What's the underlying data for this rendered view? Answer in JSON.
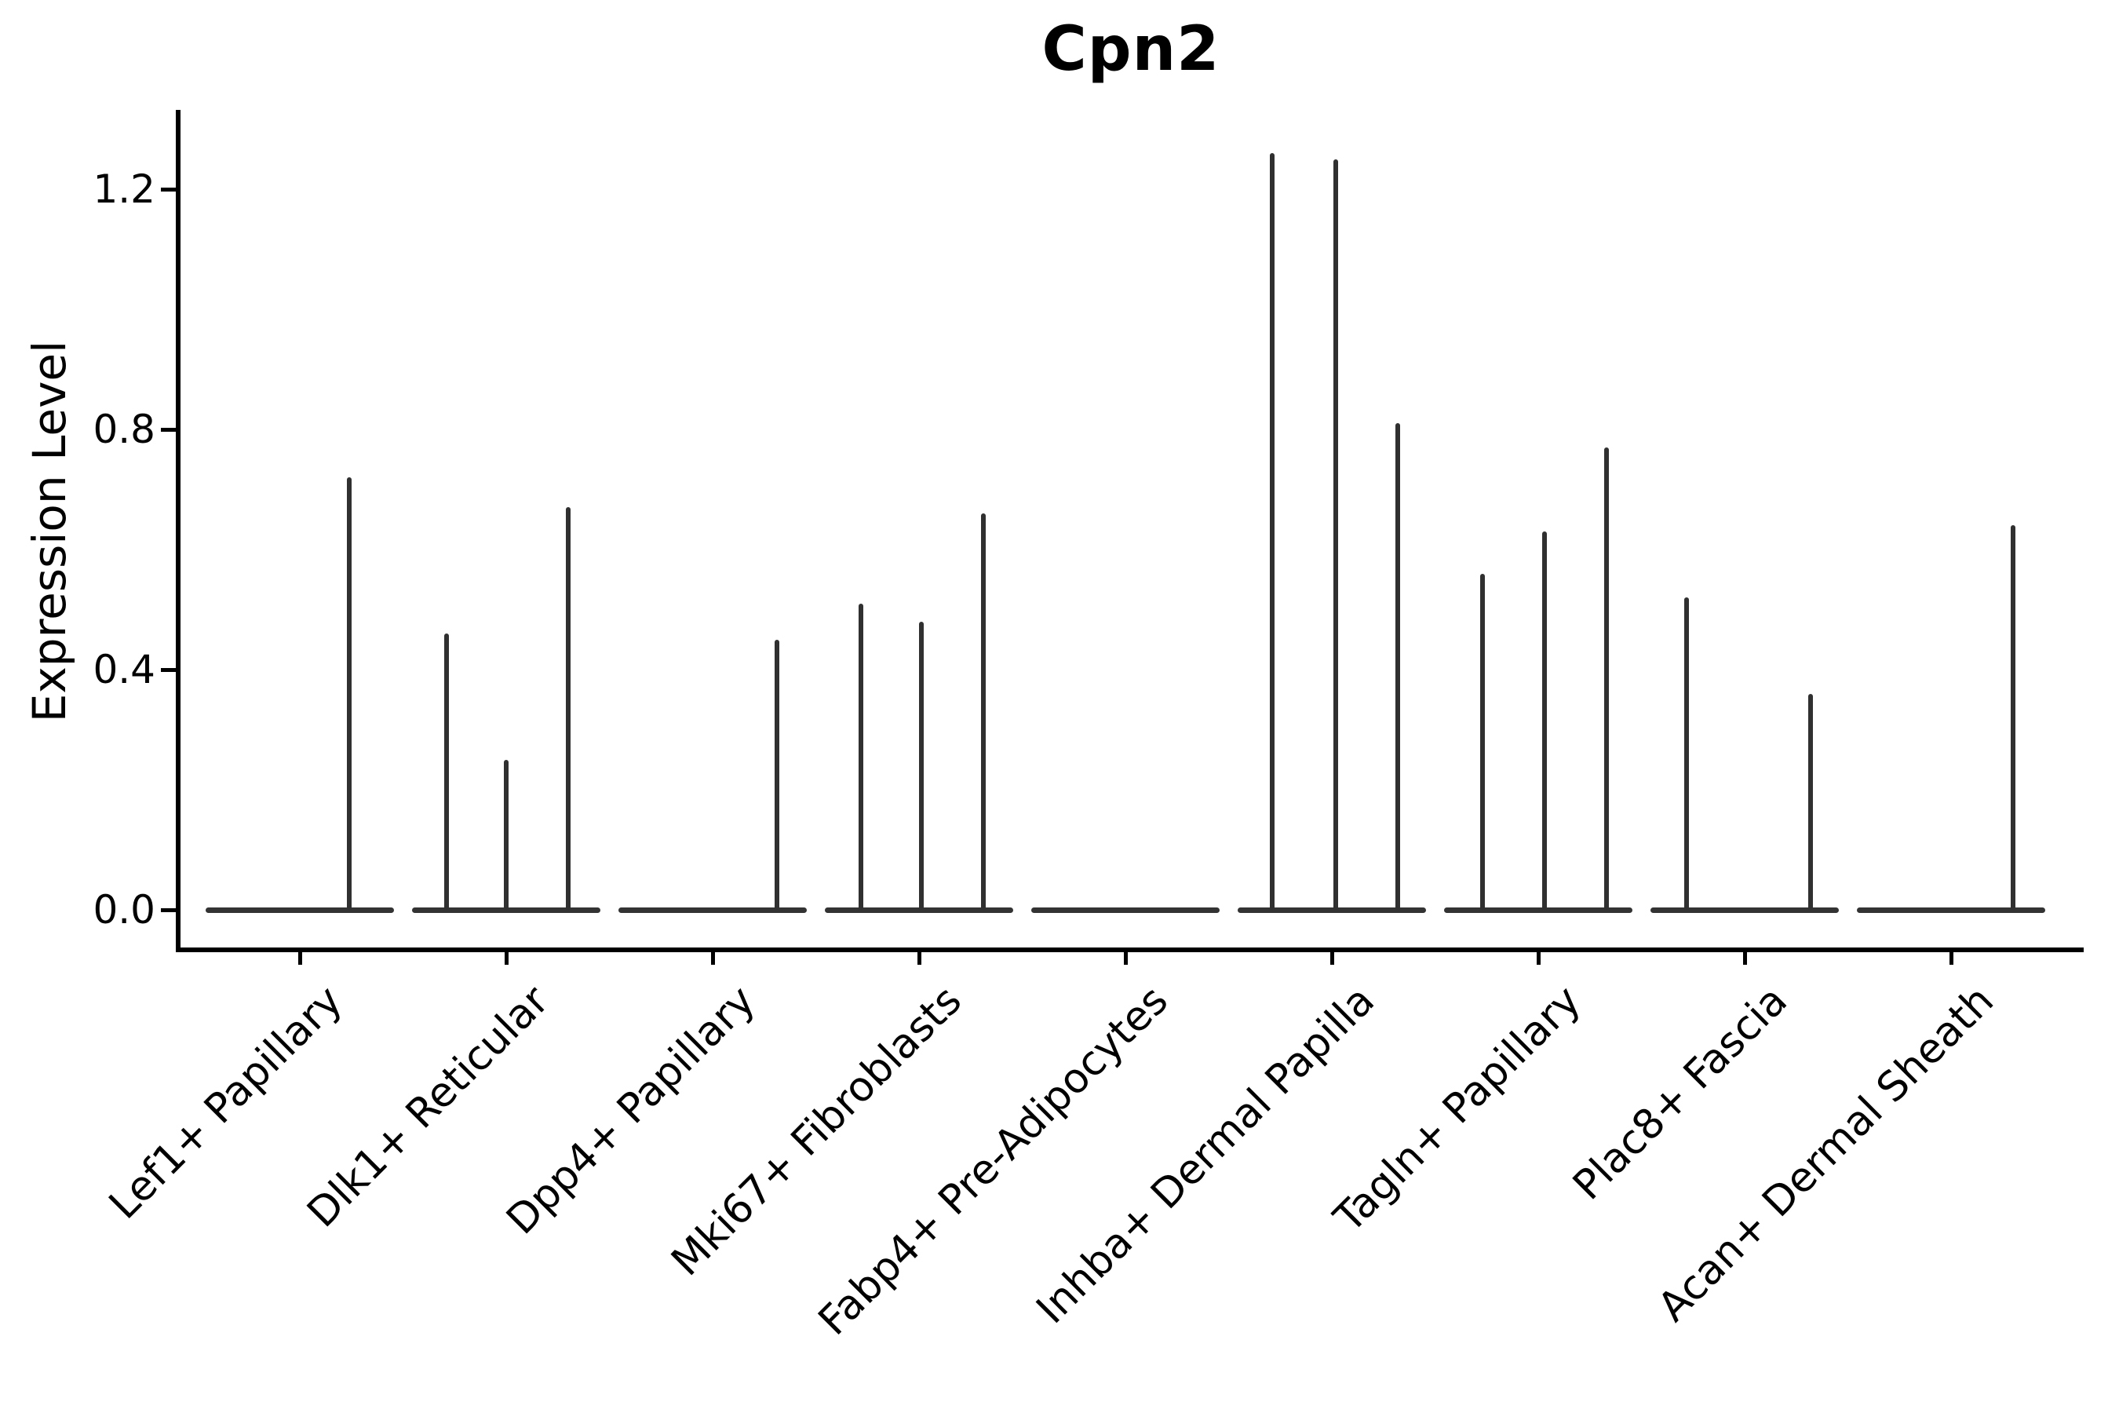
{
  "figure": {
    "title": "Cpn2",
    "ylabel": "Expression Level"
  },
  "chart_data": {
    "type": "violin",
    "title": "Cpn2",
    "xlabel": "",
    "ylabel": "Expression Level",
    "ylim": [
      -0.07,
      1.33
    ],
    "yticks": [
      0.0,
      0.4,
      0.8,
      1.2
    ],
    "ytick_labels": [
      "0.0",
      "0.4",
      "0.8",
      "1.2"
    ],
    "grid": false,
    "legend_position": "none",
    "violin_style": "flat baseline at 0 with narrow vertical density spikes (mostly zero-inflated expression)",
    "categories": [
      "Lef1+ Papillary",
      "Dlk1+ Reticular",
      "Dpp4+ Papillary",
      "Mki67+ Fibroblasts",
      "Fabp4+ Pre-Adipocytes",
      "Inhba+ Dermal Papilla",
      "Tagln+ Papillary",
      "Plac8+ Fascia",
      "Acan+ Dermal Sheath"
    ],
    "series": [
      {
        "category": "Lef1+ Papillary",
        "baseline_value": 0,
        "spikes": [
          {
            "offset": 0.24,
            "value": 0.72
          }
        ]
      },
      {
        "category": "Dlk1+ Reticular",
        "baseline_value": 0,
        "spikes": [
          {
            "offset": -0.29,
            "value": 0.46
          },
          {
            "offset": 0.0,
            "value": 0.25
          },
          {
            "offset": 0.3,
            "value": 0.67
          }
        ]
      },
      {
        "category": "Dpp4+ Papillary",
        "baseline_value": 0,
        "spikes": [
          {
            "offset": 0.31,
            "value": 0.45
          }
        ]
      },
      {
        "category": "Mki67+ Fibroblasts",
        "baseline_value": 0,
        "spikes": [
          {
            "offset": -0.28,
            "value": 0.51
          },
          {
            "offset": 0.01,
            "value": 0.48
          },
          {
            "offset": 0.31,
            "value": 0.66
          }
        ]
      },
      {
        "category": "Fabp4+ Pre-Adipocytes",
        "baseline_value": 0,
        "spikes": []
      },
      {
        "category": "Inhba+ Dermal Papilla",
        "baseline_value": 0,
        "spikes": [
          {
            "offset": -0.29,
            "value": 1.26
          },
          {
            "offset": 0.02,
            "value": 1.25
          },
          {
            "offset": 0.32,
            "value": 0.81
          }
        ]
      },
      {
        "category": "Tagln+ Papillary",
        "baseline_value": 0,
        "spikes": [
          {
            "offset": -0.27,
            "value": 0.56
          },
          {
            "offset": 0.03,
            "value": 0.63
          },
          {
            "offset": 0.33,
            "value": 0.77
          }
        ]
      },
      {
        "category": "Plac8+ Fascia",
        "baseline_value": 0,
        "spikes": [
          {
            "offset": -0.28,
            "value": 0.52
          },
          {
            "offset": 0.32,
            "value": 0.36
          }
        ]
      },
      {
        "category": "Acan+ Dermal Sheath",
        "baseline_value": 0,
        "spikes": [
          {
            "offset": 0.3,
            "value": 0.64
          }
        ]
      }
    ],
    "colors": {
      "violin_line": "#303030",
      "axis": "#000000",
      "text": "#000000",
      "background": "#ffffff"
    }
  }
}
